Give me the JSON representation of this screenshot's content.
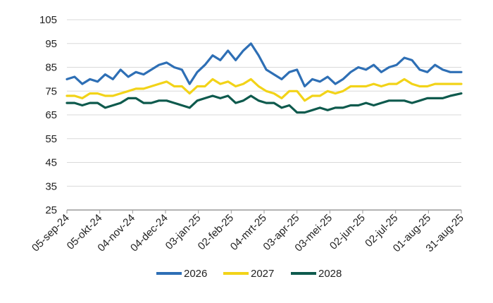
{
  "chart_data": {
    "type": "line",
    "title": "",
    "xlabel": "",
    "ylabel": "",
    "ylim": [
      25,
      105
    ],
    "yticks": [
      25,
      35,
      45,
      55,
      65,
      75,
      85,
      95,
      105
    ],
    "xlim": [
      "2024-09-05",
      "2025-08-31"
    ],
    "x_tick_labels": [
      "05-sep-24",
      "05-okt-24",
      "04-nov-24",
      "04-dec-24",
      "03-jan-25",
      "02-feb-25",
      "04-mrt-25",
      "03-apr-25",
      "03-mei-25",
      "02-jun-25",
      "02-jul-25",
      "01-aug-25",
      "31-aug-25"
    ],
    "grid": "horizontal",
    "legend_position": "bottom",
    "series": [
      {
        "name": "2026",
        "color": "#2E6FB5",
        "points": [
          [
            "2024-09-05",
            80
          ],
          [
            "2024-09-12",
            81
          ],
          [
            "2024-09-19",
            78
          ],
          [
            "2024-09-26",
            80
          ],
          [
            "2024-10-03",
            79
          ],
          [
            "2024-10-10",
            82
          ],
          [
            "2024-10-17",
            80
          ],
          [
            "2024-10-24",
            84
          ],
          [
            "2024-10-31",
            81
          ],
          [
            "2024-11-07",
            83
          ],
          [
            "2024-11-14",
            82
          ],
          [
            "2024-11-21",
            84
          ],
          [
            "2024-11-28",
            86
          ],
          [
            "2024-12-05",
            87
          ],
          [
            "2024-12-12",
            85
          ],
          [
            "2024-12-19",
            84
          ],
          [
            "2024-12-26",
            78
          ],
          [
            "2025-01-02",
            83
          ],
          [
            "2025-01-09",
            86
          ],
          [
            "2025-01-16",
            90
          ],
          [
            "2025-01-23",
            88
          ],
          [
            "2025-01-30",
            92
          ],
          [
            "2025-02-06",
            88
          ],
          [
            "2025-02-13",
            92
          ],
          [
            "2025-02-20",
            95
          ],
          [
            "2025-02-27",
            90
          ],
          [
            "2025-03-06",
            84
          ],
          [
            "2025-03-13",
            82
          ],
          [
            "2025-03-20",
            80
          ],
          [
            "2025-03-27",
            83
          ],
          [
            "2025-04-03",
            84
          ],
          [
            "2025-04-10",
            77
          ],
          [
            "2025-04-17",
            80
          ],
          [
            "2025-04-24",
            79
          ],
          [
            "2025-05-01",
            81
          ],
          [
            "2025-05-08",
            78
          ],
          [
            "2025-05-15",
            80
          ],
          [
            "2025-05-22",
            83
          ],
          [
            "2025-05-29",
            85
          ],
          [
            "2025-06-05",
            84
          ],
          [
            "2025-06-12",
            86
          ],
          [
            "2025-06-19",
            83
          ],
          [
            "2025-06-26",
            85
          ],
          [
            "2025-07-03",
            86
          ],
          [
            "2025-07-10",
            89
          ],
          [
            "2025-07-17",
            88
          ],
          [
            "2025-07-24",
            84
          ],
          [
            "2025-07-31",
            83
          ],
          [
            "2025-08-07",
            86
          ],
          [
            "2025-08-14",
            84
          ],
          [
            "2025-08-21",
            83
          ],
          [
            "2025-08-31",
            83
          ]
        ]
      },
      {
        "name": "2027",
        "color": "#F2D318",
        "points": [
          [
            "2024-09-05",
            73
          ],
          [
            "2024-09-12",
            73
          ],
          [
            "2024-09-19",
            72
          ],
          [
            "2024-09-26",
            74
          ],
          [
            "2024-10-03",
            74
          ],
          [
            "2024-10-10",
            73
          ],
          [
            "2024-10-17",
            73
          ],
          [
            "2024-10-24",
            74
          ],
          [
            "2024-10-31",
            75
          ],
          [
            "2024-11-07",
            76
          ],
          [
            "2024-11-14",
            76
          ],
          [
            "2024-11-21",
            77
          ],
          [
            "2024-11-28",
            78
          ],
          [
            "2024-12-05",
            79
          ],
          [
            "2024-12-12",
            77
          ],
          [
            "2024-12-19",
            77
          ],
          [
            "2024-12-26",
            74
          ],
          [
            "2025-01-02",
            77
          ],
          [
            "2025-01-09",
            77
          ],
          [
            "2025-01-16",
            80
          ],
          [
            "2025-01-23",
            78
          ],
          [
            "2025-01-30",
            79
          ],
          [
            "2025-02-06",
            77
          ],
          [
            "2025-02-13",
            78
          ],
          [
            "2025-02-20",
            80
          ],
          [
            "2025-02-27",
            77
          ],
          [
            "2025-03-06",
            75
          ],
          [
            "2025-03-13",
            74
          ],
          [
            "2025-03-20",
            72
          ],
          [
            "2025-03-27",
            75
          ],
          [
            "2025-04-03",
            75
          ],
          [
            "2025-04-10",
            71
          ],
          [
            "2025-04-17",
            73
          ],
          [
            "2025-04-24",
            73
          ],
          [
            "2025-05-01",
            75
          ],
          [
            "2025-05-08",
            74
          ],
          [
            "2025-05-15",
            75
          ],
          [
            "2025-05-22",
            77
          ],
          [
            "2025-05-29",
            77
          ],
          [
            "2025-06-05",
            77
          ],
          [
            "2025-06-12",
            78
          ],
          [
            "2025-06-19",
            77
          ],
          [
            "2025-06-26",
            78
          ],
          [
            "2025-07-03",
            78
          ],
          [
            "2025-07-10",
            80
          ],
          [
            "2025-07-17",
            78
          ],
          [
            "2025-07-24",
            77
          ],
          [
            "2025-07-31",
            77
          ],
          [
            "2025-08-07",
            78
          ],
          [
            "2025-08-14",
            78
          ],
          [
            "2025-08-21",
            78
          ],
          [
            "2025-08-31",
            78
          ]
        ]
      },
      {
        "name": "2028",
        "color": "#0E5A4D",
        "points": [
          [
            "2024-09-05",
            70
          ],
          [
            "2024-09-12",
            70
          ],
          [
            "2024-09-19",
            69
          ],
          [
            "2024-09-26",
            70
          ],
          [
            "2024-10-03",
            70
          ],
          [
            "2024-10-10",
            68
          ],
          [
            "2024-10-17",
            69
          ],
          [
            "2024-10-24",
            70
          ],
          [
            "2024-10-31",
            72
          ],
          [
            "2024-11-07",
            72
          ],
          [
            "2024-11-14",
            70
          ],
          [
            "2024-11-21",
            70
          ],
          [
            "2024-11-28",
            71
          ],
          [
            "2024-12-05",
            71
          ],
          [
            "2024-12-12",
            70
          ],
          [
            "2024-12-19",
            69
          ],
          [
            "2024-12-26",
            68
          ],
          [
            "2025-01-02",
            71
          ],
          [
            "2025-01-09",
            72
          ],
          [
            "2025-01-16",
            73
          ],
          [
            "2025-01-23",
            72
          ],
          [
            "2025-01-30",
            73
          ],
          [
            "2025-02-06",
            70
          ],
          [
            "2025-02-13",
            71
          ],
          [
            "2025-02-20",
            73
          ],
          [
            "2025-02-27",
            71
          ],
          [
            "2025-03-06",
            70
          ],
          [
            "2025-03-13",
            70
          ],
          [
            "2025-03-20",
            68
          ],
          [
            "2025-03-27",
            69
          ],
          [
            "2025-04-03",
            66
          ],
          [
            "2025-04-10",
            66
          ],
          [
            "2025-04-17",
            67
          ],
          [
            "2025-04-24",
            68
          ],
          [
            "2025-05-01",
            67
          ],
          [
            "2025-05-08",
            68
          ],
          [
            "2025-05-15",
            68
          ],
          [
            "2025-05-22",
            69
          ],
          [
            "2025-05-29",
            69
          ],
          [
            "2025-06-05",
            70
          ],
          [
            "2025-06-12",
            69
          ],
          [
            "2025-06-19",
            70
          ],
          [
            "2025-06-26",
            71
          ],
          [
            "2025-07-03",
            71
          ],
          [
            "2025-07-10",
            71
          ],
          [
            "2025-07-17",
            70
          ],
          [
            "2025-07-24",
            71
          ],
          [
            "2025-07-31",
            72
          ],
          [
            "2025-08-07",
            72
          ],
          [
            "2025-08-14",
            72
          ],
          [
            "2025-08-21",
            73
          ],
          [
            "2025-08-31",
            74
          ]
        ]
      }
    ]
  }
}
